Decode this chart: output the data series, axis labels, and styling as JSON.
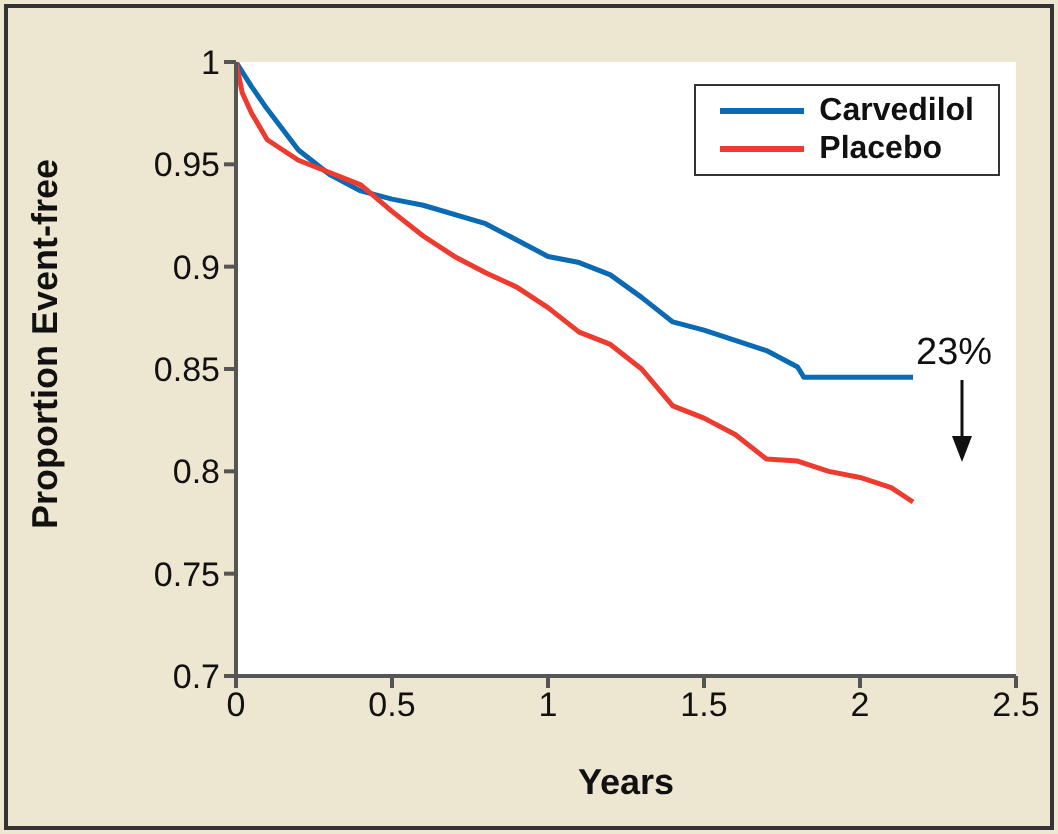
{
  "chart_data": {
    "type": "line",
    "xlabel": "Years",
    "ylabel": "Proportion Event-free",
    "xlim": [
      0,
      2.5
    ],
    "xticks": [
      0,
      0.5,
      1,
      1.5,
      2,
      2.5
    ],
    "ylim": [
      0.7,
      1
    ],
    "yticks": [
      0.7,
      0.75,
      0.8,
      0.85,
      0.9,
      0.95,
      1
    ],
    "grid": false,
    "legend": "top right",
    "marker": "none",
    "line_style": "solid",
    "annotations": [
      "23%"
    ],
    "series": [
      {
        "name": "Carvedilol",
        "color": "#0a6ab4",
        "x": [
          0,
          0.05,
          0.1,
          0.15,
          0.2,
          0.3,
          0.4,
          0.5,
          0.6,
          0.8,
          0.9,
          1.0,
          1.1,
          1.2,
          1.3,
          1.4,
          1.5,
          1.6,
          1.7,
          1.8,
          1.82,
          2.17
        ],
        "values": [
          1.0,
          0.988,
          0.977,
          0.967,
          0.957,
          0.945,
          0.937,
          0.933,
          0.93,
          0.921,
          0.913,
          0.905,
          0.902,
          0.896,
          0.885,
          0.873,
          0.869,
          0.864,
          0.859,
          0.851,
          0.846,
          0.846
        ]
      },
      {
        "name": "Placebo",
        "color": "#ee3b2f",
        "x": [
          0,
          0.02,
          0.05,
          0.1,
          0.2,
          0.3,
          0.4,
          0.5,
          0.6,
          0.7,
          0.8,
          0.9,
          1.0,
          1.1,
          1.2,
          1.3,
          1.4,
          1.5,
          1.6,
          1.7,
          1.8,
          1.9,
          2.0,
          2.1,
          2.17
        ],
        "values": [
          1.0,
          0.985,
          0.975,
          0.962,
          0.952,
          0.946,
          0.94,
          0.927,
          0.915,
          0.905,
          0.897,
          0.89,
          0.88,
          0.868,
          0.862,
          0.85,
          0.832,
          0.826,
          0.818,
          0.806,
          0.805,
          0.8,
          0.797,
          0.792,
          0.785
        ]
      }
    ]
  }
}
